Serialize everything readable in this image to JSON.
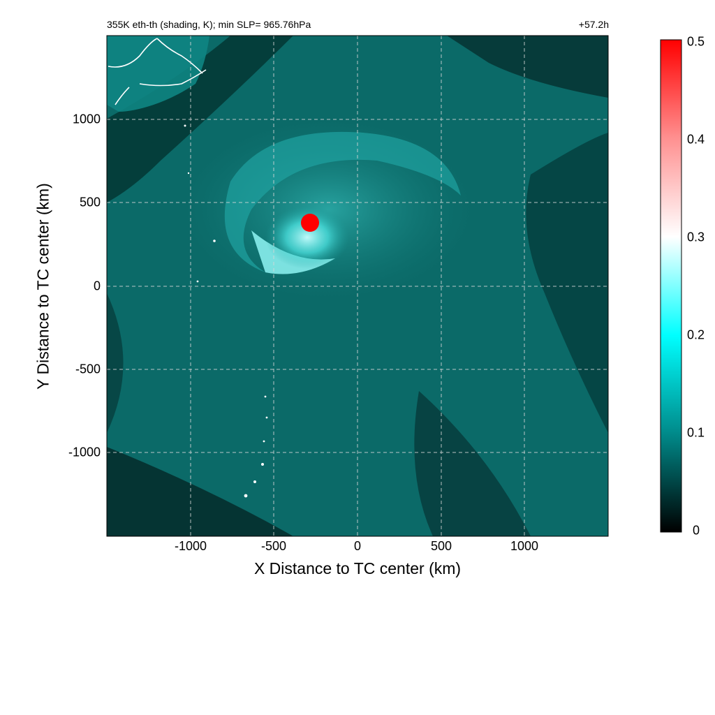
{
  "header": {
    "title_left": "355K eth-th (shading, K); min SLP= 965.76hPa",
    "title_right": "+57.2h"
  },
  "chart_data": {
    "type": "heatmap",
    "title": "355K eth-th (shading, K); min SLP= 965.76hPa",
    "forecast_time": "+57.2h",
    "xlabel": "X Distance to TC center (km)",
    "ylabel": "Y Distance to TC center (km)",
    "xlim": [
      -1500,
      1500
    ],
    "ylim": [
      -1500,
      1500
    ],
    "xticks": [
      -1000,
      -500,
      0,
      500,
      1000
    ],
    "yticks": [
      -1000,
      -500,
      0,
      500,
      1000
    ],
    "xtick_labels": [
      "-1000",
      "-500",
      "0",
      "500",
      "1000"
    ],
    "ytick_labels": [
      "-1000",
      "-500",
      "0",
      "500",
      "1000"
    ],
    "grid": true,
    "colorbar": {
      "range": [
        0,
        0.5
      ],
      "ticks": [
        0,
        0.1,
        0.2,
        0.3,
        0.4,
        0.5
      ],
      "tick_labels": [
        "0",
        "0.1",
        "0.2",
        "0.3",
        "0.4",
        "0.5"
      ],
      "colors": [
        "#000000",
        "#008888",
        "#00ffff",
        "#ffffff",
        "#ff0000"
      ]
    },
    "features": {
      "max_core_x_km": -280,
      "max_core_y_km": 375,
      "max_core_value": 0.5
    }
  }
}
